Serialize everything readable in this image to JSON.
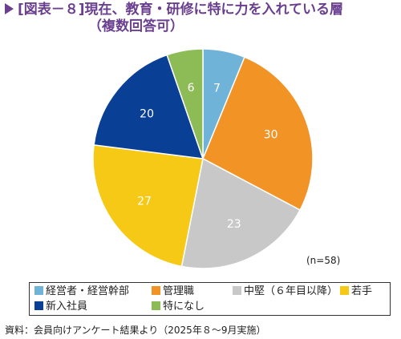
{
  "title": "[図表－８]現在、教育・研修に特に力を入れている層",
  "subtitle": "（複数回答可）",
  "n_label": "(n=58)",
  "source": "資料：会員向けアンケート結果より（2025年８～9月実施）",
  "chart_data": {
    "type": "pie",
    "title": "[図表－８]現在、教育・研修に特に力を入れている層",
    "subtitle": "（複数回答可）",
    "categories": [
      "経営者・経営幹部",
      "管理職",
      "中堅（６年目以降）",
      "若手",
      "新入社員",
      "特になし"
    ],
    "values": [
      7,
      30,
      23,
      27,
      20,
      6
    ],
    "colors": [
      "#6fb3d9",
      "#f29325",
      "#c8c8c8",
      "#f5c916",
      "#0a3f96",
      "#8dbb55"
    ],
    "label_colors": [
      "#ffffff",
      "#ffffff",
      "#ffffff",
      "#ffffff",
      "#ffffff",
      "#ffffff"
    ],
    "legend_position": "bottom",
    "start_angle": "top",
    "direction": "clockwise"
  }
}
